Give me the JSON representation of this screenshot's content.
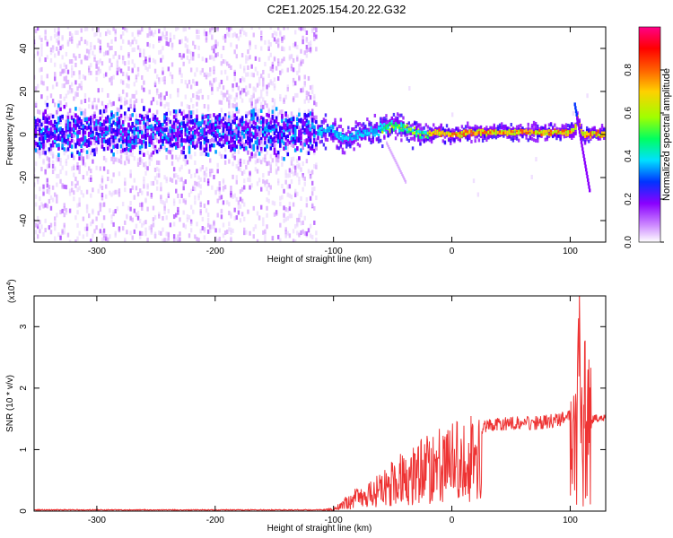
{
  "figure_title": "C2E1.2025.154.20.22.G32",
  "chart_data": [
    {
      "type": "heatmap",
      "title": "C2E1.2025.154.20.22.G32",
      "xlabel": "Height of straight line (km)",
      "ylabel": "Frequency (Hz)",
      "xlim": [
        -353,
        130
      ],
      "ylim": [
        -50,
        50
      ],
      "x_ticks": [
        -300,
        -200,
        -100,
        0,
        100
      ],
      "y_ticks": [
        -40,
        -20,
        0,
        20,
        40
      ],
      "grid": false,
      "colorbar": {
        "label": "Normalized spectral amplitude",
        "range": [
          0,
          1
        ],
        "ticks": [
          "0.0",
          "0.2",
          "0.4",
          "0.6",
          "0.8"
        ],
        "colors": [
          "#ffffff",
          "#cc88ff",
          "#8a00ff",
          "#0033ff",
          "#00e0ff",
          "#00ff60",
          "#a0ff00",
          "#ffd000",
          "#ff6000",
          "#ff0000",
          "#ff0088"
        ]
      },
      "description": "Frequency spectrum vs height; noisy broad scatter below -115 km, narrow carrier near 0 Hz above -100 km",
      "centerline": {
        "x": [
          -353,
          -110,
          -100,
          -95,
          -90,
          -80,
          -70,
          -60,
          -50,
          -40,
          -30,
          -20,
          -10,
          0,
          20,
          50,
          80,
          100,
          104,
          106,
          110,
          114,
          130
        ],
        "y": [
          1,
          1,
          2,
          -1,
          -2,
          0,
          1,
          2,
          4,
          3,
          1,
          0,
          1,
          0,
          1,
          1,
          1,
          1,
          2,
          8,
          0,
          0,
          0
        ]
      }
    },
    {
      "type": "line",
      "xlabel": "Height of straight line (km)",
      "ylabel": "SNR (10 * v/v)",
      "scale_label": "(x10",
      "scale_exp": "4",
      "xlim": [
        -353,
        130
      ],
      "ylim": [
        0,
        3.5
      ],
      "x_ticks": [
        -300,
        -200,
        -100,
        0,
        100
      ],
      "y_ticks": [
        0,
        1,
        2,
        3
      ],
      "grid": false,
      "color": "#ee3333",
      "envelope": {
        "x": [
          -353,
          -110,
          -100,
          -90,
          -80,
          -70,
          -60,
          -50,
          -40,
          -30,
          -20,
          -10,
          0,
          10,
          20,
          30,
          50,
          70,
          90,
          100,
          105,
          108,
          110,
          113,
          117,
          130
        ],
        "y": [
          0.02,
          0.02,
          0.05,
          0.2,
          0.35,
          0.4,
          0.55,
          0.75,
          0.9,
          1.0,
          1.1,
          1.2,
          1.25,
          1.3,
          1.4,
          1.45,
          1.5,
          1.5,
          1.55,
          1.6,
          1.5,
          2.0,
          1.2,
          1.6,
          1.5,
          1.5
        ]
      }
    }
  ]
}
